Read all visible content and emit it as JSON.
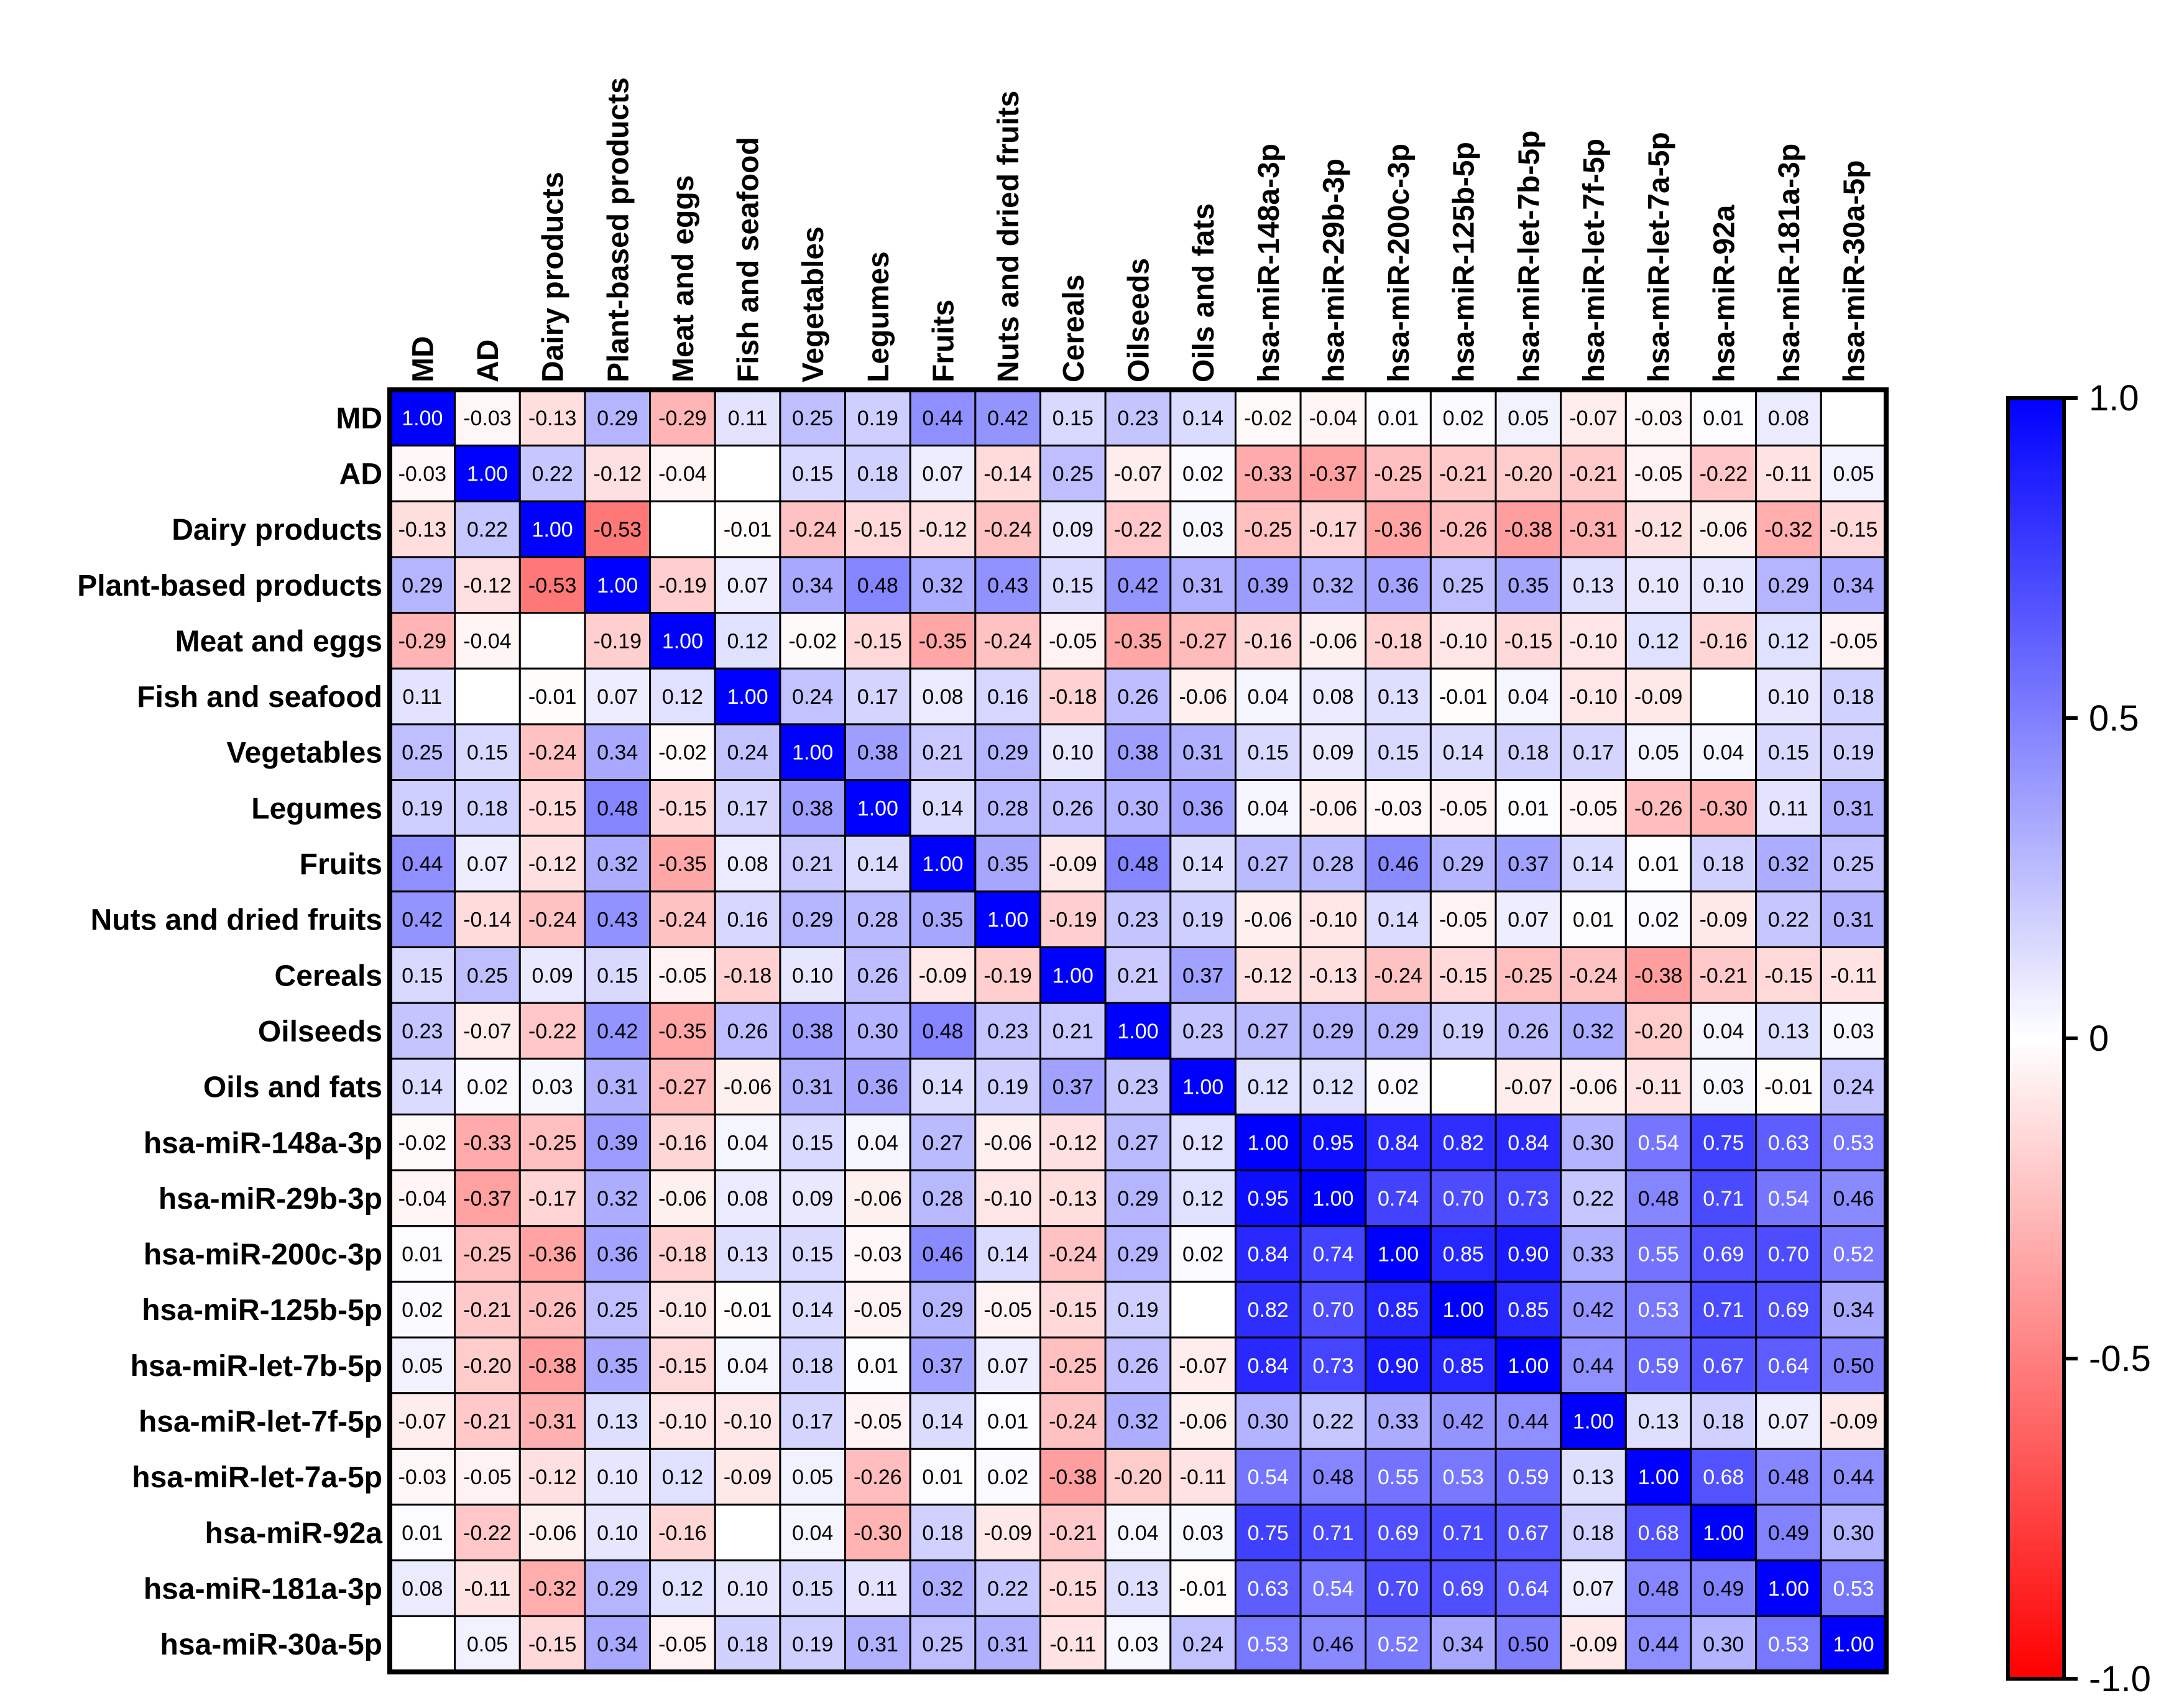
{
  "chart_data": {
    "type": "heatmap",
    "labels": [
      "MD",
      "AD",
      "Dairy products",
      "Plant-based products",
      "Meat and eggs",
      "Fish and seafood",
      "Vegetables",
      "Legumes",
      "Fruits",
      "Nuts and dried fruits",
      "Cereals",
      "Oilseeds",
      "Oils and fats",
      "hsa-miR-148a-3p",
      "hsa-miR-29b-3p",
      "hsa-miR-200c-3p",
      "hsa-miR-125b-5p",
      "hsa-miR-let-7b-5p",
      "hsa-miR-let-7f-5p",
      "hsa-miR-let-7a-5p",
      "hsa-miR-92a",
      "hsa-miR-181a-3p",
      "hsa-miR-30a-5p"
    ],
    "values": [
      [
        1.0,
        -0.03,
        -0.13,
        0.29,
        -0.29,
        0.11,
        0.25,
        0.19,
        0.44,
        0.42,
        0.15,
        0.23,
        0.14,
        -0.02,
        -0.04,
        0.01,
        0.02,
        0.05,
        -0.07,
        -0.03,
        0.01,
        0.08,
        null
      ],
      [
        -0.03,
        1.0,
        0.22,
        -0.12,
        -0.04,
        null,
        0.15,
        0.18,
        0.07,
        -0.14,
        0.25,
        -0.07,
        0.02,
        -0.33,
        -0.37,
        -0.25,
        -0.21,
        -0.2,
        -0.21,
        -0.05,
        -0.22,
        -0.11,
        0.05
      ],
      [
        -0.13,
        0.22,
        1.0,
        -0.53,
        null,
        -0.01,
        -0.24,
        -0.15,
        -0.12,
        -0.24,
        0.09,
        -0.22,
        0.03,
        -0.25,
        -0.17,
        -0.36,
        -0.26,
        -0.38,
        -0.31,
        -0.12,
        -0.06,
        -0.32,
        -0.15
      ],
      [
        0.29,
        -0.12,
        -0.53,
        1.0,
        -0.19,
        0.07,
        0.34,
        0.48,
        0.32,
        0.43,
        0.15,
        0.42,
        0.31,
        0.39,
        0.32,
        0.36,
        0.25,
        0.35,
        0.13,
        0.1,
        0.1,
        0.29,
        0.34
      ],
      [
        -0.29,
        -0.04,
        null,
        -0.19,
        1.0,
        0.12,
        -0.02,
        -0.15,
        -0.35,
        -0.24,
        -0.05,
        -0.35,
        -0.27,
        -0.16,
        -0.06,
        -0.18,
        -0.1,
        -0.15,
        -0.1,
        0.12,
        -0.16,
        0.12,
        -0.05
      ],
      [
        0.11,
        null,
        -0.01,
        0.07,
        0.12,
        1.0,
        0.24,
        0.17,
        0.08,
        0.16,
        -0.18,
        0.26,
        -0.06,
        0.04,
        0.08,
        0.13,
        -0.01,
        0.04,
        -0.1,
        -0.09,
        null,
        0.1,
        0.18
      ],
      [
        0.25,
        0.15,
        -0.24,
        0.34,
        -0.02,
        0.24,
        1.0,
        0.38,
        0.21,
        0.29,
        0.1,
        0.38,
        0.31,
        0.15,
        0.09,
        0.15,
        0.14,
        0.18,
        0.17,
        0.05,
        0.04,
        0.15,
        0.19
      ],
      [
        0.19,
        0.18,
        -0.15,
        0.48,
        -0.15,
        0.17,
        0.38,
        1.0,
        0.14,
        0.28,
        0.26,
        0.3,
        0.36,
        0.04,
        -0.06,
        -0.03,
        -0.05,
        0.01,
        -0.05,
        -0.26,
        -0.3,
        0.11,
        0.31
      ],
      [
        0.44,
        0.07,
        -0.12,
        0.32,
        -0.35,
        0.08,
        0.21,
        0.14,
        1.0,
        0.35,
        -0.09,
        0.48,
        0.14,
        0.27,
        0.28,
        0.46,
        0.29,
        0.37,
        0.14,
        0.01,
        0.18,
        0.32,
        0.25
      ],
      [
        0.42,
        -0.14,
        -0.24,
        0.43,
        -0.24,
        0.16,
        0.29,
        0.28,
        0.35,
        1.0,
        -0.19,
        0.23,
        0.19,
        -0.06,
        -0.1,
        0.14,
        -0.05,
        0.07,
        0.01,
        0.02,
        -0.09,
        0.22,
        0.31
      ],
      [
        0.15,
        0.25,
        0.09,
        0.15,
        -0.05,
        -0.18,
        0.1,
        0.26,
        -0.09,
        -0.19,
        1.0,
        0.21,
        0.37,
        -0.12,
        -0.13,
        -0.24,
        -0.15,
        -0.25,
        -0.24,
        -0.38,
        -0.21,
        -0.15,
        -0.11
      ],
      [
        0.23,
        -0.07,
        -0.22,
        0.42,
        -0.35,
        0.26,
        0.38,
        0.3,
        0.48,
        0.23,
        0.21,
        1.0,
        0.23,
        0.27,
        0.29,
        0.29,
        0.19,
        0.26,
        0.32,
        -0.2,
        0.04,
        0.13,
        0.03
      ],
      [
        0.14,
        0.02,
        0.03,
        0.31,
        -0.27,
        -0.06,
        0.31,
        0.36,
        0.14,
        0.19,
        0.37,
        0.23,
        1.0,
        0.12,
        0.12,
        0.02,
        null,
        -0.07,
        -0.06,
        -0.11,
        0.03,
        -0.01,
        0.24
      ],
      [
        -0.02,
        -0.33,
        -0.25,
        0.39,
        -0.16,
        0.04,
        0.15,
        0.04,
        0.27,
        -0.06,
        -0.12,
        0.27,
        0.12,
        1.0,
        0.95,
        0.84,
        0.82,
        0.84,
        0.3,
        0.54,
        0.75,
        0.63,
        0.53
      ],
      [
        -0.04,
        -0.37,
        -0.17,
        0.32,
        -0.06,
        0.08,
        0.09,
        -0.06,
        0.28,
        -0.1,
        -0.13,
        0.29,
        0.12,
        0.95,
        1.0,
        0.74,
        0.7,
        0.73,
        0.22,
        0.48,
        0.71,
        0.54,
        0.46
      ],
      [
        0.01,
        -0.25,
        -0.36,
        0.36,
        -0.18,
        0.13,
        0.15,
        -0.03,
        0.46,
        0.14,
        -0.24,
        0.29,
        0.02,
        0.84,
        0.74,
        1.0,
        0.85,
        0.9,
        0.33,
        0.55,
        0.69,
        0.7,
        0.52
      ],
      [
        0.02,
        -0.21,
        -0.26,
        0.25,
        -0.1,
        -0.01,
        0.14,
        -0.05,
        0.29,
        -0.05,
        -0.15,
        0.19,
        null,
        0.82,
        0.7,
        0.85,
        1.0,
        0.85,
        0.42,
        0.53,
        0.71,
        0.69,
        0.34
      ],
      [
        0.05,
        -0.2,
        -0.38,
        0.35,
        -0.15,
        0.04,
        0.18,
        0.01,
        0.37,
        0.07,
        -0.25,
        0.26,
        -0.07,
        0.84,
        0.73,
        0.9,
        0.85,
        1.0,
        0.44,
        0.59,
        0.67,
        0.64,
        0.5
      ],
      [
        -0.07,
        -0.21,
        -0.31,
        0.13,
        -0.1,
        -0.1,
        0.17,
        -0.05,
        0.14,
        0.01,
        -0.24,
        0.32,
        -0.06,
        0.3,
        0.22,
        0.33,
        0.42,
        0.44,
        1.0,
        0.13,
        0.18,
        0.07,
        -0.09
      ],
      [
        -0.03,
        -0.05,
        -0.12,
        0.1,
        0.12,
        -0.09,
        0.05,
        -0.26,
        0.01,
        0.02,
        -0.38,
        -0.2,
        -0.11,
        0.54,
        0.48,
        0.55,
        0.53,
        0.59,
        0.13,
        1.0,
        0.68,
        0.48,
        0.44
      ],
      [
        0.01,
        -0.22,
        -0.06,
        0.1,
        -0.16,
        null,
        0.04,
        -0.3,
        0.18,
        -0.09,
        -0.21,
        0.04,
        0.03,
        0.75,
        0.71,
        0.69,
        0.71,
        0.67,
        0.18,
        0.68,
        1.0,
        0.49,
        0.3
      ],
      [
        0.08,
        -0.11,
        -0.32,
        0.29,
        0.12,
        0.1,
        0.15,
        0.11,
        0.32,
        0.22,
        -0.15,
        0.13,
        -0.01,
        0.63,
        0.54,
        0.7,
        0.69,
        0.64,
        0.07,
        0.48,
        0.49,
        1.0,
        0.53
      ],
      [
        null,
        0.05,
        -0.15,
        0.34,
        -0.05,
        0.18,
        0.19,
        0.31,
        0.25,
        0.31,
        -0.11,
        0.03,
        0.24,
        0.53,
        0.46,
        0.52,
        0.34,
        0.5,
        -0.09,
        0.44,
        0.3,
        0.53,
        1.0
      ]
    ],
    "value_range": [
      -1.0,
      1.0
    ],
    "colorscale": {
      "low": "#ff0000",
      "mid": "#ffffff",
      "high": "#0000ff"
    },
    "colorbar": {
      "ticks": [
        1.0,
        0.5,
        0,
        -0.5,
        -1.0
      ],
      "tick_labels": [
        "1.0",
        "0.5",
        "0",
        "-0.5",
        "-1.0"
      ]
    }
  }
}
